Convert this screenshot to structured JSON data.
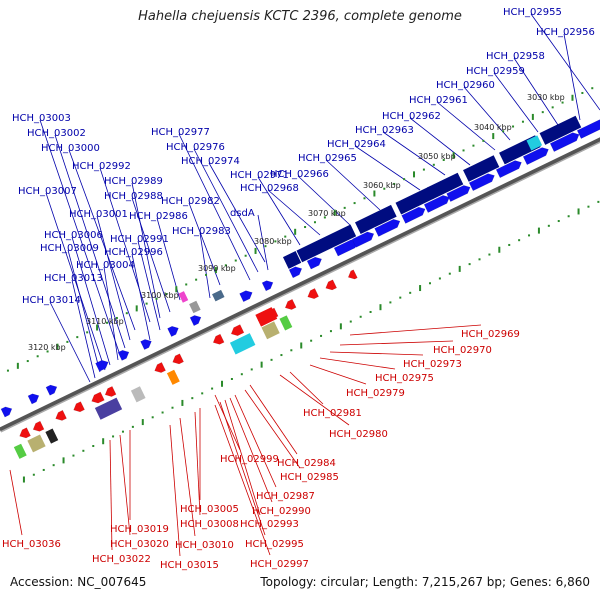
{
  "title": "Hahella chejuensis KCTC 2396, complete genome",
  "footer": {
    "accession": "Accession: NC_007645",
    "summary": "Topology: circular; Length: 7,215,267 bp; Genes: 6,860"
  },
  "colors": {
    "forward_cds": "#1010ee",
    "reverse_cds": "#ee1010",
    "forward_label": "#0000aa",
    "reverse_label": "#cc0000",
    "backbone": "#777777",
    "tick": "#2a8a2a",
    "cog_dark_blue": "#000c80",
    "cog_cyan": "#22cce0",
    "cog_green": "#55cc44",
    "cog_khaki": "#b8b070",
    "cog_orange": "#ff8800",
    "cog_pink": "#ee44cc",
    "cog_grey": "#888888"
  },
  "kbp_ticks": [
    "3030 kbp",
    "3040 kbp",
    "3050 kbp",
    "3060 kbp",
    "3070 kbp",
    "3080 kbp",
    "3090 kbp",
    "3100 kbp",
    "3110 kbp",
    "3120 kbp"
  ],
  "forward_genes": [
    "HCH_02955",
    "HCH_02956",
    "HCH_02958",
    "HCH_02959",
    "HCH_02960",
    "HCH_02961",
    "HCH_02962",
    "HCH_02963",
    "HCH_02964",
    "HCH_02965",
    "HCH_02966",
    "HCH_02968",
    "HCH_02971",
    "HCH_02974",
    "HCH_02976",
    "HCH_02977",
    "dsdA",
    "HCH_02982",
    "HCH_02983",
    "HCH_02986",
    "HCH_02988",
    "HCH_02989",
    "HCH_02991",
    "HCH_02992",
    "HCH_02996",
    "HCH_03000",
    "HCH_03001",
    "HCH_03002",
    "HCH_03003",
    "HCH_03004",
    "HCH_03006",
    "HCH_03007",
    "HCH_03009",
    "HCH_03013",
    "HCH_03014"
  ],
  "reverse_genes": [
    "HCH_02969",
    "HCH_02970",
    "HCH_02973",
    "HCH_02975",
    "HCH_02979",
    "HCH_02981",
    "HCH_02980",
    "HCH_02984",
    "HCH_02985",
    "HCH_02999",
    "HCH_02987",
    "HCH_02990",
    "HCH_02993",
    "HCH_03005",
    "HCH_03008",
    "HCH_02995",
    "HCH_02997",
    "HCH_03010",
    "HCH_03015",
    "HCH_03019",
    "HCH_03020",
    "HCH_03022",
    "HCH_03036"
  ]
}
